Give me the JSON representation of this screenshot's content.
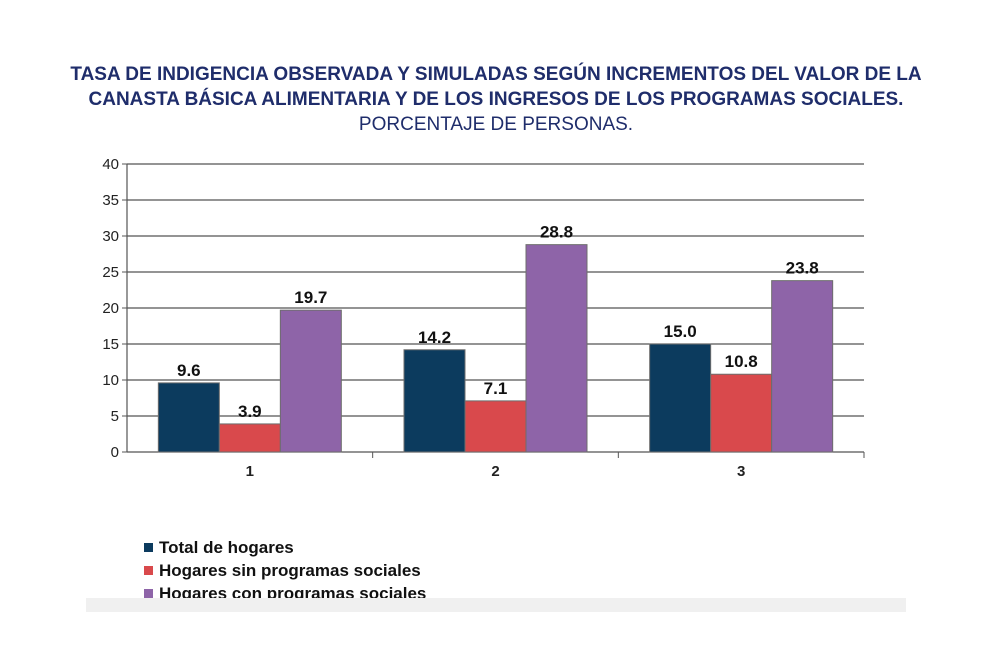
{
  "title": {
    "bold_text": "TASA DE INDIGENCIA OBSERVADA Y SIMULADAS SEGÚN INCREMENTOS DEL VALOR DE LA CANASTA BÁSICA ALIMENTARIA Y DE LOS INGRESOS DE LOS PROGRAMAS SOCIALES.",
    "normal_text": " PORCENTAJE DE PERSONAS."
  },
  "colors": {
    "title": "#1f2d6b",
    "series": [
      "#0c3b5e",
      "#d9494c",
      "#8e64a8"
    ]
  },
  "chart_data": {
    "type": "bar",
    "title": "TASA DE INDIGENCIA OBSERVADA Y SIMULADAS SEGÚN INCREMENTOS DEL VALOR DE LA CANASTA BÁSICA ALIMENTARIA Y DE LOS INGRESOS DE LOS PROGRAMAS SOCIALES. PORCENTAJE DE PERSONAS.",
    "categories": [
      "1",
      "2",
      "3"
    ],
    "series": [
      {
        "name": "Total de hogares",
        "values": [
          9.6,
          14.2,
          15.0
        ],
        "labels": [
          "9.6",
          "14.2",
          "15.0"
        ]
      },
      {
        "name": "Hogares sin programas sociales",
        "values": [
          3.9,
          7.1,
          10.8
        ],
        "labels": [
          "3.9",
          "7.1",
          "10.8"
        ]
      },
      {
        "name": "Hogares con programas sociales",
        "values": [
          19.7,
          28.8,
          23.8
        ],
        "labels": [
          "19.7",
          "28.8",
          "23.8"
        ]
      }
    ],
    "xlabel": "",
    "ylabel": "",
    "ylim": [
      0,
      40
    ],
    "yticks": [
      0,
      5,
      10,
      15,
      20,
      25,
      30,
      35,
      40
    ],
    "grid": true,
    "legend": "bottom-left"
  }
}
